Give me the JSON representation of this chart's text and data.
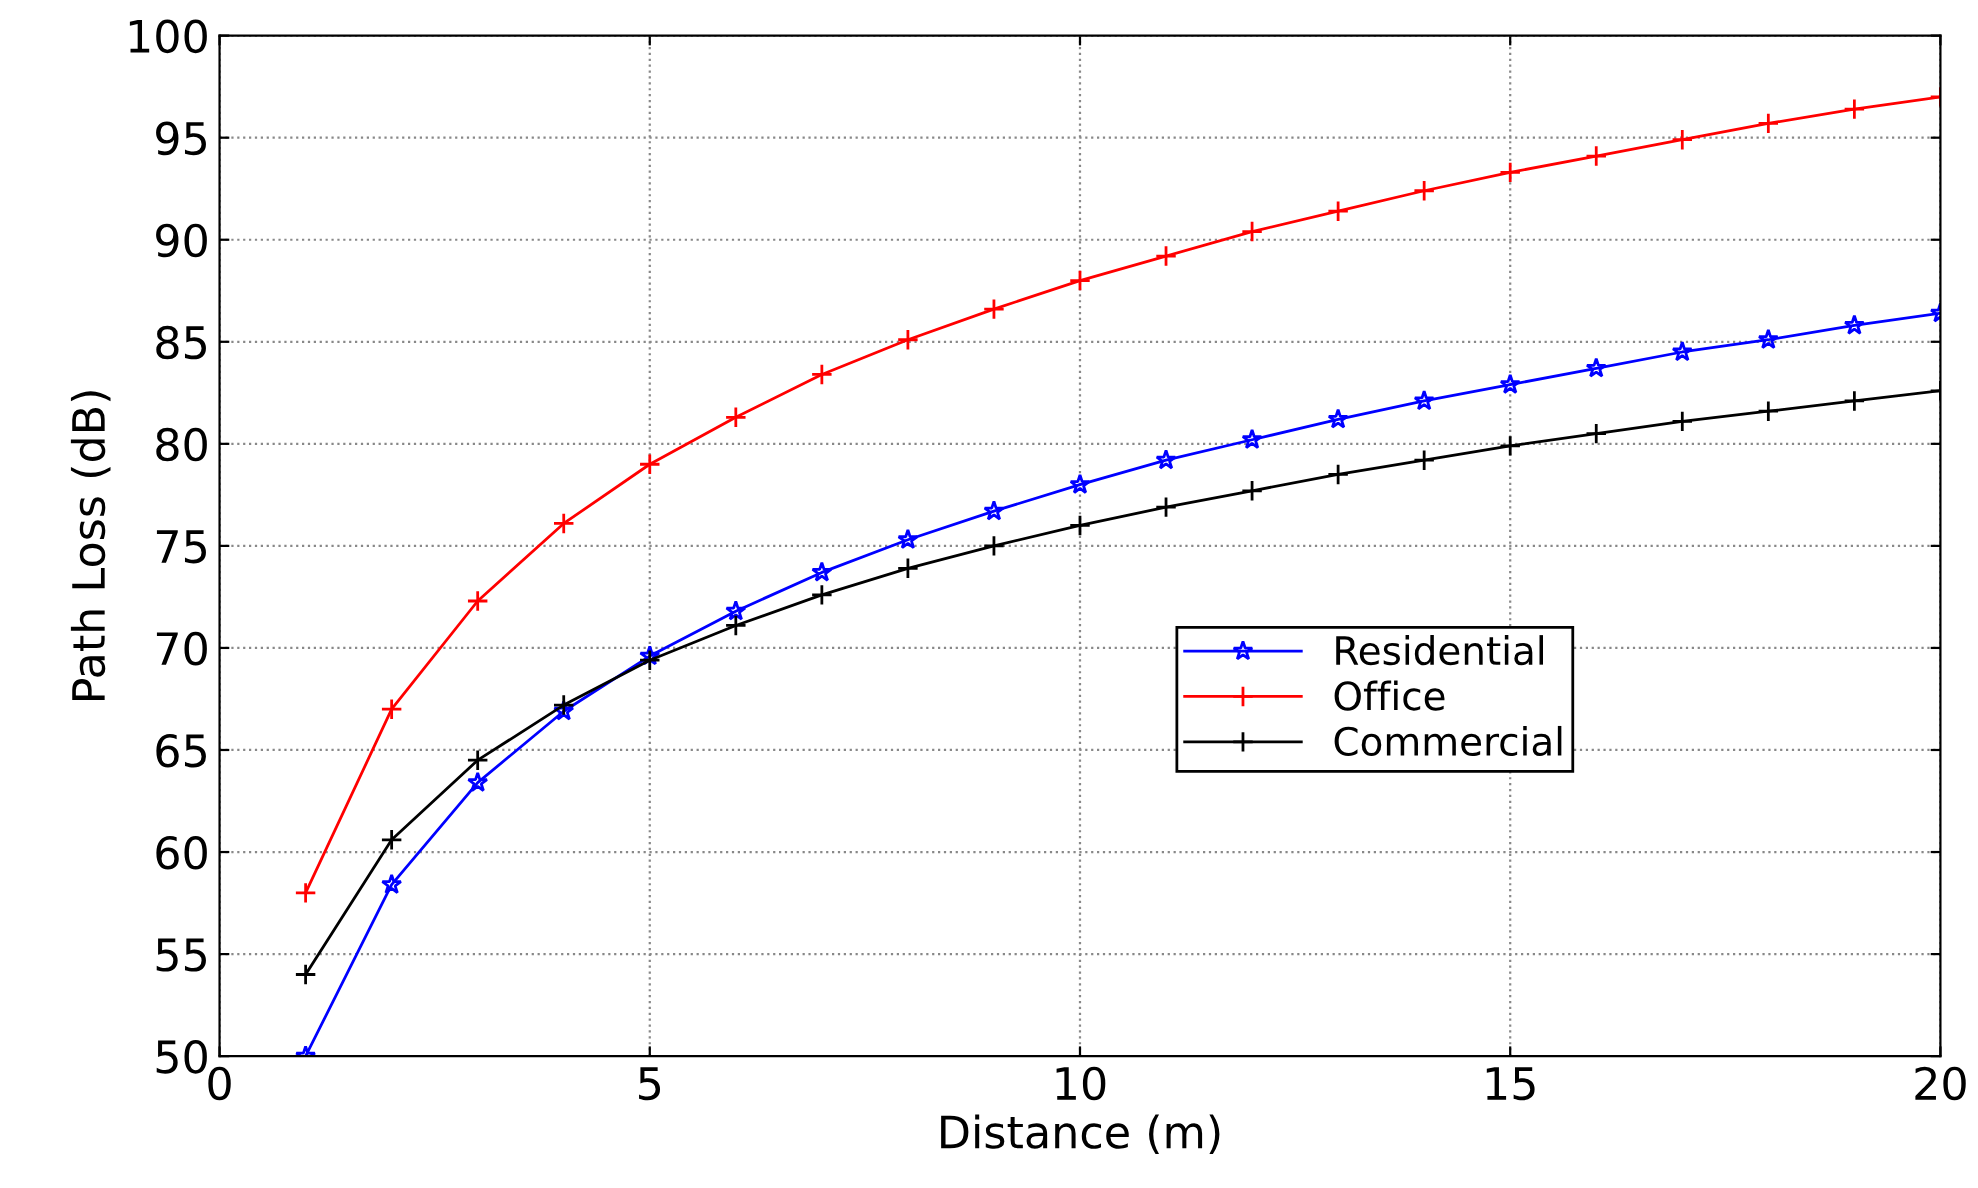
{
  "chart_data": {
    "type": "line",
    "xlabel": "Distance (m)",
    "ylabel": "Path Loss (dB)",
    "x": [
      1,
      2,
      3,
      4,
      5,
      6,
      7,
      8,
      9,
      10,
      11,
      12,
      13,
      14,
      15,
      16,
      17,
      18,
      19,
      20
    ],
    "series": [
      {
        "name": "Residential",
        "color": "#0000ff",
        "marker": "star",
        "values": [
          50.0,
          58.4,
          63.4,
          66.9,
          69.6,
          71.8,
          73.7,
          75.3,
          76.7,
          78.0,
          79.2,
          80.2,
          81.2,
          82.1,
          82.9,
          83.7,
          84.5,
          85.1,
          85.8,
          86.4
        ]
      },
      {
        "name": "Office",
        "color": "#ff0000",
        "marker": "cross",
        "values": [
          58.0,
          67.0,
          72.3,
          76.1,
          79.0,
          81.3,
          83.4,
          85.1,
          86.6,
          88.0,
          89.2,
          90.4,
          91.4,
          92.4,
          93.3,
          94.1,
          94.9,
          95.7,
          96.4,
          97.0
        ]
      },
      {
        "name": "Commercial",
        "color": "#000000",
        "marker": "cross",
        "values": [
          54.0,
          60.6,
          64.5,
          67.2,
          69.4,
          71.1,
          72.6,
          73.9,
          75.0,
          76.0,
          76.9,
          77.7,
          78.5,
          79.2,
          79.9,
          80.5,
          81.1,
          81.6,
          82.1,
          82.6
        ]
      }
    ],
    "xlim": [
      0,
      20
    ],
    "xticks": [
      0,
      5,
      10,
      15,
      20
    ],
    "ylim": [
      50,
      100
    ],
    "yticks": [
      50,
      55,
      60,
      65,
      70,
      75,
      80,
      85,
      90,
      95,
      100
    ],
    "grid": true,
    "legend": "right",
    "line_style": "solid"
  }
}
